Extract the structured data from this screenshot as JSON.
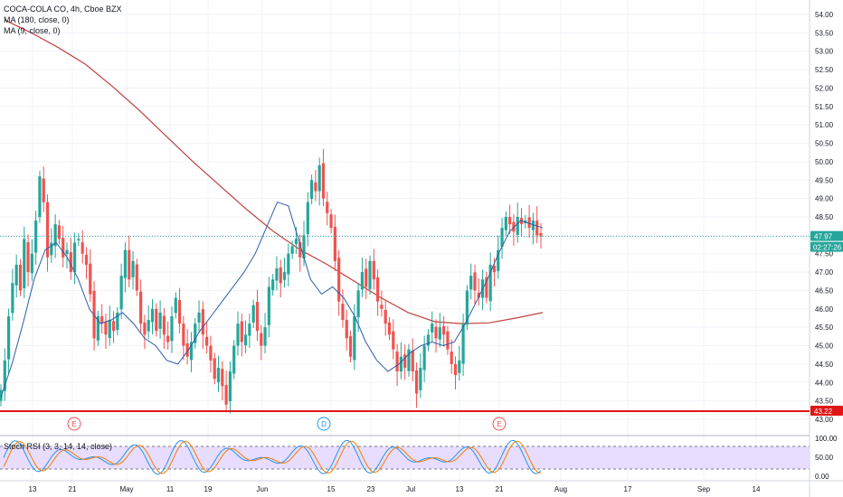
{
  "legend": {
    "symbol": "COCA-COLA CO, 4h, Cboe BZX",
    "ma1": "MA (180, close, 0)",
    "ma2": "MA (9, close, 0)"
  },
  "rsi_legend": "Stoch RSI (3, 3, 14, 14, close)",
  "colors": {
    "up": "#26a69a",
    "down": "#ef5350",
    "ma180": "#c2413f",
    "ma9": "#2b5ea7",
    "support": "#e01616",
    "current": "#26a69a",
    "rsi_band": "#e6d9ff",
    "rsi_k": "#2196f3",
    "rsi_d": "#f57c00"
  },
  "chart_data": {
    "type": "candlestick",
    "title": "COCA-COLA CO, 4h, Cboe BZX",
    "y_ticks": [
      "54.00",
      "53.50",
      "53.00",
      "52.50",
      "52.00",
      "51.50",
      "51.00",
      "50.50",
      "50.00",
      "49.50",
      "49.00",
      "48.50",
      "48.00",
      "47.50",
      "47.00",
      "46.50",
      "46.00",
      "45.50",
      "45.00",
      "44.50",
      "44.00",
      "43.50",
      "43.00"
    ],
    "ylim": [
      42.9,
      54.2
    ],
    "x_ticks": [
      "13",
      "21",
      "May",
      "11",
      "19",
      "Jun",
      "15",
      "23",
      "Jul",
      "13",
      "21",
      "Aug",
      "17",
      "Sep",
      "14"
    ],
    "price_label": "47.97",
    "countdown_label": "02:27:26",
    "support_label": "43.22",
    "current_price": 47.97,
    "support_price": 43.22,
    "earnings_markers": [
      "E",
      "D",
      "E"
    ],
    "rsi_ticks": [
      "100.00",
      "50.00",
      "0.00"
    ],
    "rsi_levels": [
      80,
      20
    ],
    "candle_closes": [
      43.8,
      44.6,
      45.8,
      46.7,
      47.2,
      46.5,
      47.9,
      47.0,
      47.5,
      48.4,
      49.6,
      48.9,
      47.4,
      47.8,
      48.3,
      47.9,
      47.4,
      47.6,
      47.0,
      47.8,
      47.9,
      47.5,
      47.2,
      46.4,
      45.2,
      45.8,
      45.6,
      45.3,
      45.7,
      45.4,
      45.9,
      46.9,
      47.6,
      46.8,
      47.3,
      46.5,
      45.6,
      45.3,
      45.7,
      46.0,
      45.4,
      45.9,
      45.3,
      45.1,
      45.8,
      46.3,
      45.6,
      45.0,
      44.7,
      45.1,
      45.6,
      45.9,
      45.3,
      45.0,
      44.6,
      44.1,
      44.4,
      43.9,
      43.4,
      44.3,
      45.0,
      45.6,
      45.1,
      45.3,
      45.6,
      46.1,
      45.4,
      45.0,
      45.5,
      46.6,
      46.8,
      47.1,
      46.7,
      47.0,
      47.5,
      47.7,
      47.9,
      47.4,
      48.0,
      48.9,
      49.5,
      49.2,
      49.9,
      49.0,
      48.6,
      48.2,
      47.3,
      46.2,
      45.7,
      45.2,
      44.7,
      45.8,
      46.5,
      47.0,
      46.6,
      47.3,
      46.8,
      46.2,
      46.0,
      45.6,
      45.3,
      44.9,
      44.3,
      44.7,
      44.4,
      44.9,
      44.3,
      43.7,
      44.4,
      45.0,
      45.3,
      45.6,
      45.2,
      45.5,
      45.3,
      44.9,
      44.5,
      44.2,
      44.6,
      45.6,
      46.5,
      46.9,
      46.5,
      46.3,
      46.8,
      46.3,
      47.2,
      47.0,
      47.6,
      48.2,
      48.5,
      48.3,
      48.1,
      48.5,
      48.3,
      48.4,
      48.2,
      48.4,
      48.0,
      47.97
    ],
    "candle_x_start": 1,
    "candle_x_end": 598,
    "ma180": [
      53.85,
      53.5,
      53.1,
      52.65,
      52.05,
      51.4,
      50.7,
      50.0,
      49.35,
      48.7,
      48.1,
      47.6,
      47.2,
      46.75,
      46.3,
      45.9,
      45.65,
      45.6,
      45.62,
      45.75,
      45.9
    ],
    "ma180_x_start": 5,
    "ma180_x_end": 600,
    "ma9": [
      43.6,
      44.5,
      45.6,
      46.8,
      47.6,
      47.8,
      47.4,
      46.8,
      46.0,
      45.6,
      45.7,
      45.9,
      45.6,
      45.2,
      45.0,
      44.6,
      44.5,
      44.9,
      45.4,
      45.8,
      46.2,
      46.6,
      47.0,
      47.5,
      48.2,
      48.9,
      48.8,
      47.8,
      46.8,
      46.4,
      46.6,
      46.3,
      45.8,
      45.1,
      44.6,
      44.3,
      44.5,
      44.8,
      45.0,
      45.1,
      45.0,
      45.1,
      45.6,
      46.2,
      46.8,
      47.5,
      48.1,
      48.4,
      48.3,
      48.2
    ],
    "ma9_x_start": 1,
    "ma9_x_end": 600
  }
}
